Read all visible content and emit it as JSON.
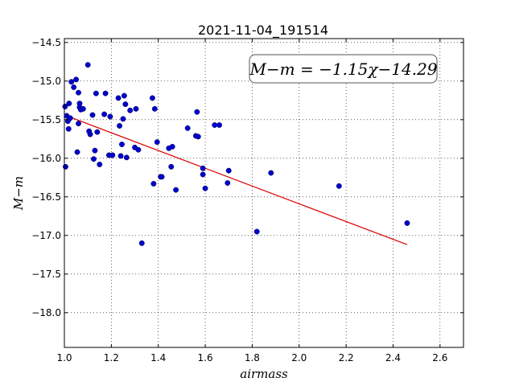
{
  "chart_data": {
    "type": "scatter",
    "title": "2021-11-04_191514",
    "xlabel": "airmass",
    "ylabel": "M−m",
    "xlim": [
      1.0,
      2.7
    ],
    "ylim": [
      -18.45,
      -14.45
    ],
    "x_ticks": [
      1.0,
      1.2,
      1.4,
      1.6,
      1.8,
      2.0,
      2.2,
      2.4,
      2.6
    ],
    "x_tick_labels": [
      "1.0",
      "1.2",
      "1.4",
      "1.6",
      "1.8",
      "2.0",
      "2.2",
      "2.4",
      "2.6"
    ],
    "y_ticks": [
      -14.5,
      -15.0,
      -15.5,
      -16.0,
      -16.5,
      -17.0,
      -17.5,
      -18.0
    ],
    "y_tick_labels": [
      "−14.5",
      "−15.0",
      "−15.5",
      "−16.0",
      "−16.5",
      "−17.0",
      "−17.5",
      "−18.0"
    ],
    "grid": true,
    "point_color": "#0000cc",
    "line_color": "#dd0000",
    "annotation": "M−m = −1.15χ−14.29",
    "fit": {
      "slope": -1.15,
      "intercept": -14.29,
      "x_range": [
        1.02,
        2.46
      ]
    },
    "points": [
      [
        1.003,
        -15.33
      ],
      [
        1.005,
        -16.11
      ],
      [
        1.01,
        -15.45
      ],
      [
        1.015,
        -15.52
      ],
      [
        1.018,
        -15.62
      ],
      [
        1.02,
        -15.29
      ],
      [
        1.025,
        -15.48
      ],
      [
        1.03,
        -15.01
      ],
      [
        1.04,
        -15.08
      ],
      [
        1.05,
        -14.98
      ],
      [
        1.055,
        -15.92
      ],
      [
        1.06,
        -15.55
      ],
      [
        1.06,
        -15.15
      ],
      [
        1.065,
        -15.29
      ],
      [
        1.065,
        -15.34
      ],
      [
        1.07,
        -15.37
      ],
      [
        1.08,
        -15.36
      ],
      [
        1.1,
        -14.79
      ],
      [
        1.105,
        -15.65
      ],
      [
        1.11,
        -15.69
      ],
      [
        1.12,
        -15.44
      ],
      [
        1.125,
        -16.01
      ],
      [
        1.13,
        -15.9
      ],
      [
        1.135,
        -15.16
      ],
      [
        1.14,
        -15.66
      ],
      [
        1.15,
        -16.08
      ],
      [
        1.17,
        -15.43
      ],
      [
        1.175,
        -15.16
      ],
      [
        1.19,
        -15.96
      ],
      [
        1.195,
        -15.46
      ],
      [
        1.205,
        -15.96
      ],
      [
        1.23,
        -15.22
      ],
      [
        1.235,
        -15.58
      ],
      [
        1.24,
        -15.97
      ],
      [
        1.245,
        -15.82
      ],
      [
        1.25,
        -15.49
      ],
      [
        1.255,
        -15.19
      ],
      [
        1.26,
        -15.3
      ],
      [
        1.265,
        -15.99
      ],
      [
        1.28,
        -15.38
      ],
      [
        1.3,
        -15.86
      ],
      [
        1.305,
        -15.36
      ],
      [
        1.315,
        -15.89
      ],
      [
        1.33,
        -17.1
      ],
      [
        1.375,
        -15.22
      ],
      [
        1.38,
        -16.33
      ],
      [
        1.385,
        -15.36
      ],
      [
        1.395,
        -15.79
      ],
      [
        1.41,
        -16.24
      ],
      [
        1.415,
        -16.24
      ],
      [
        1.445,
        -15.87
      ],
      [
        1.455,
        -16.11
      ],
      [
        1.46,
        -15.85
      ],
      [
        1.475,
        -16.41
      ],
      [
        1.525,
        -15.61
      ],
      [
        1.56,
        -15.71
      ],
      [
        1.565,
        -15.4
      ],
      [
        1.57,
        -15.72
      ],
      [
        1.59,
        -16.13
      ],
      [
        1.59,
        -16.21
      ],
      [
        1.6,
        -16.39
      ],
      [
        1.64,
        -15.57
      ],
      [
        1.66,
        -15.57
      ],
      [
        1.695,
        -16.32
      ],
      [
        1.7,
        -16.16
      ],
      [
        1.82,
        -16.95
      ],
      [
        1.88,
        -16.19
      ],
      [
        2.17,
        -16.36
      ],
      [
        2.46,
        -16.84
      ]
    ]
  }
}
